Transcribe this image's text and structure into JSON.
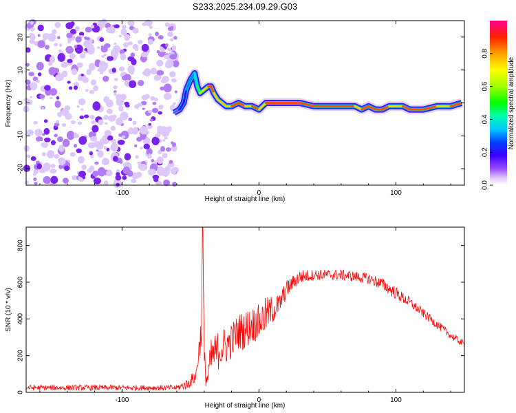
{
  "title": "S233.2025.234.09.29.G03",
  "chart_data": [
    {
      "type": "heatmap",
      "name": "spectrogram",
      "xlabel": "Height of straight line (km)",
      "ylabel": "Frequency (Hz)",
      "xlim": [
        -170,
        150
      ],
      "ylim": [
        -25,
        25
      ],
      "xticks": [
        -100,
        0,
        100
      ],
      "yticks": [
        -20,
        -10,
        0,
        10,
        20
      ],
      "xtick_labels": [
        "-100",
        "0",
        "100"
      ],
      "ytick_labels": [
        "-20",
        "-10",
        "0",
        "10",
        "20"
      ],
      "noise_region_x": [
        -170,
        -60
      ],
      "signal_track": {
        "x": [
          -62,
          -58,
          -55,
          -53,
          -50,
          -47,
          -45,
          -43,
          -40,
          -37,
          -35,
          -33,
          -30,
          -27,
          -24,
          -20,
          -15,
          -10,
          -5,
          0,
          5,
          10,
          20,
          30,
          40,
          50,
          60,
          70,
          75,
          80,
          85,
          90,
          95,
          100,
          105,
          110,
          120,
          130,
          140,
          148
        ],
        "y": [
          -3,
          -2,
          0,
          4,
          7,
          9,
          5,
          3,
          4,
          5,
          5,
          3,
          1,
          0,
          -1,
          -1,
          0,
          -1,
          -1,
          -2,
          0,
          0,
          0,
          0,
          -1,
          -1,
          -1,
          -1,
          -2,
          -1,
          -2,
          -2,
          -1,
          -1,
          -1,
          -2,
          -2,
          -1,
          -1,
          0
        ],
        "amp": [
          0.25,
          0.3,
          0.35,
          0.4,
          0.45,
          0.5,
          0.6,
          0.7,
          0.8,
          0.95,
          0.9,
          0.85,
          0.8,
          0.8,
          0.85,
          0.9,
          0.9,
          0.85,
          0.9,
          0.8,
          0.9,
          0.95,
          0.95,
          0.9,
          0.9,
          0.95,
          0.9,
          0.85,
          0.9,
          0.9,
          0.95,
          0.9,
          0.8,
          0.85,
          0.9,
          0.95,
          0.9,
          0.85,
          0.9,
          0.8
        ]
      },
      "colorbar": {
        "label": "Normalized spectral amplitude",
        "range": [
          0,
          1
        ],
        "ticks": [
          0.0,
          0.2,
          0.4,
          0.6,
          0.8
        ],
        "tick_labels": [
          "0.0",
          "0.2",
          "0.4",
          "0.6",
          "0.8"
        ]
      }
    },
    {
      "type": "line",
      "name": "snr",
      "xlabel": "Height of straight line (km)",
      "ylabel": "SNR (10 * v/v)",
      "xlim": [
        -170,
        150
      ],
      "ylim": [
        0,
        900
      ],
      "xticks": [
        -100,
        0,
        100
      ],
      "yticks": [
        0,
        200,
        400,
        600,
        800
      ],
      "xtick_labels": [
        "-100",
        "0",
        "100"
      ],
      "ytick_labels": [
        "0",
        "200",
        "400",
        "600",
        "800"
      ],
      "series": [
        {
          "name": "SNR",
          "color": "#ff0000",
          "envelope_x": [
            -170,
            -60,
            -52,
            -46,
            -42,
            -41,
            -40,
            -38,
            -35,
            -30,
            -25,
            -20,
            -15,
            -10,
            -5,
            0,
            5,
            10,
            15,
            20,
            25,
            30,
            40,
            50,
            60,
            70,
            80,
            90,
            100,
            110,
            120,
            130,
            140,
            150
          ],
          "envelope_y": [
            25,
            25,
            45,
            90,
            350,
            900,
            170,
            60,
            180,
            230,
            250,
            280,
            330,
            340,
            370,
            380,
            420,
            450,
            480,
            560,
            600,
            630,
            640,
            640,
            640,
            630,
            620,
            590,
            540,
            490,
            430,
            370,
            310,
            260
          ],
          "noise_amplitude": [
            15,
            15,
            30,
            40,
            100,
            0,
            90,
            60,
            110,
            110,
            110,
            100,
            100,
            110,
            100,
            100,
            100,
            80,
            60,
            50,
            40,
            40,
            30,
            30,
            30,
            30,
            30,
            35,
            35,
            30,
            25,
            25,
            20,
            20
          ]
        }
      ]
    }
  ]
}
